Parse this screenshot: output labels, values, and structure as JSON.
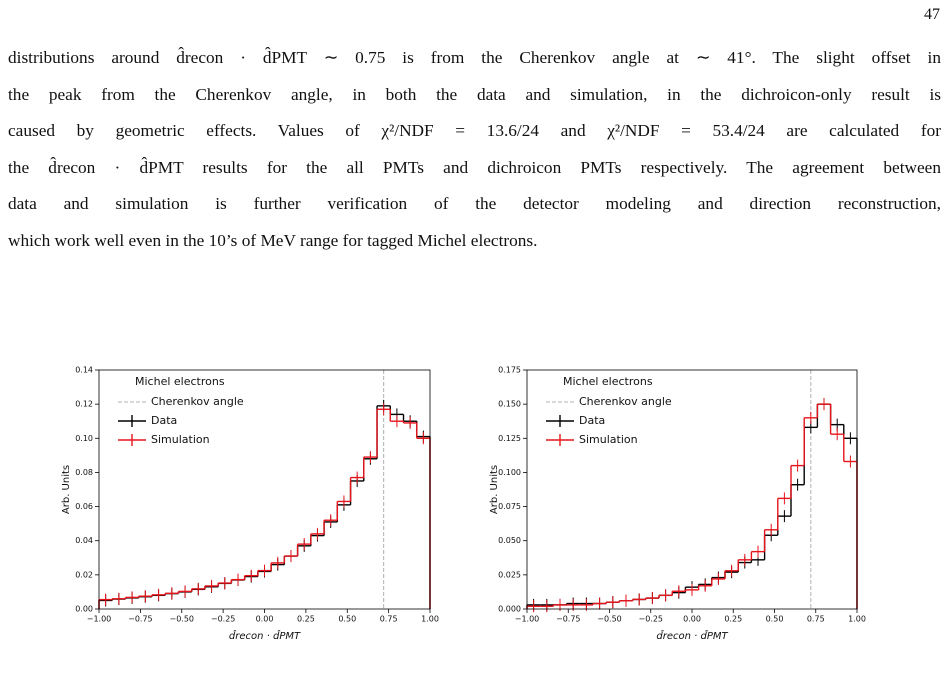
{
  "page_number": "47",
  "paragraph": [
    "distributions around d̂recon · d̂PMT ∼ 0.75 is from the Cherenkov angle at ∼ 41°. The slight offset in",
    "the peak from the Cherenkov angle, in both the data and simulation, in the dichroicon-only result is",
    "caused by geometric effects. Values of χ²/NDF = 13.6/24 and χ²/NDF = 53.4/24 are calculated for",
    "the d̂recon · d̂PMT results for the all PMTs and dichroicon PMTs respectively. The agreement between",
    "data and simulation is further verification of the detector modeling and direction reconstruction,",
    "which work well even in the 10’s of MeV range for tagged Michel electrons."
  ],
  "chart_data": [
    {
      "type": "histogram",
      "x_label": "d̂recon · d̂PMT",
      "y_label": "Arb. Units",
      "legend_title": "Michel electrons",
      "reference_line": {
        "name": "Cherenkov angle",
        "x": 0.72,
        "color": "#b0b0b0"
      },
      "bins": [
        -1,
        -0.92,
        -0.84,
        -0.76,
        -0.68,
        -0.6,
        -0.52,
        -0.44,
        -0.36,
        -0.28,
        -0.2,
        -0.12,
        -0.04,
        0.04,
        0.12,
        0.2,
        0.28,
        0.36,
        0.44,
        0.52,
        0.6,
        0.68,
        0.76,
        0.84,
        0.92,
        1
      ],
      "series": [
        {
          "name": "Data",
          "color": "#000000",
          "values": [
            0.005,
            0.0058,
            0.0065,
            0.0072,
            0.008,
            0.009,
            0.01,
            0.0115,
            0.013,
            0.015,
            0.017,
            0.019,
            0.022,
            0.026,
            0.031,
            0.037,
            0.043,
            0.051,
            0.061,
            0.075,
            0.088,
            0.119,
            0.114,
            0.11,
            0.101
          ]
        },
        {
          "name": "Simulation",
          "color": "#e8141c",
          "values": [
            0.0055,
            0.006,
            0.0068,
            0.0075,
            0.0083,
            0.0092,
            0.0103,
            0.0118,
            0.0135,
            0.0152,
            0.0172,
            0.0195,
            0.0225,
            0.027,
            0.031,
            0.038,
            0.044,
            0.052,
            0.063,
            0.077,
            0.089,
            0.117,
            0.11,
            0.109,
            0.1
          ]
        }
      ],
      "xlim": [
        -1,
        1
      ],
      "xticks": [
        {
          "value": -1,
          "label": "−1.00"
        },
        {
          "value": -0.75,
          "label": "−0.75"
        },
        {
          "value": -0.5,
          "label": "−0.50"
        },
        {
          "value": -0.25,
          "label": "−0.25"
        },
        {
          "value": 0,
          "label": "0.00"
        },
        0.25,
        {
          "value": 0.5,
          "label": "0.50"
        },
        0.75,
        {
          "value": 1,
          "label": "1.00"
        }
      ],
      "ylim": [
        0,
        0.14
      ],
      "yticks": [
        {
          "value": 0,
          "label": "0.00"
        },
        0.02,
        0.04,
        0.06,
        0.08,
        {
          "value": 0.1,
          "label": "0.10"
        },
        0.12,
        0.14
      ]
    },
    {
      "type": "histogram",
      "x_label": "d̂recon · d̂PMT",
      "y_label": "Arb. Units",
      "legend_title": "Michel electrons",
      "reference_line": {
        "name": "Cherenkov angle",
        "x": 0.72,
        "color": "#b0b0b0"
      },
      "bins": [
        -1,
        -0.92,
        -0.84,
        -0.76,
        -0.68,
        -0.6,
        -0.52,
        -0.44,
        -0.36,
        -0.28,
        -0.2,
        -0.12,
        -0.04,
        0.04,
        0.12,
        0.2,
        0.28,
        0.36,
        0.44,
        0.52,
        0.6,
        0.68,
        0.76,
        0.84,
        0.92,
        1
      ],
      "series": [
        {
          "name": "Data",
          "color": "#000000",
          "values": [
            0.003,
            0.003,
            0.003,
            0.004,
            0.004,
            0.004,
            0.005,
            0.006,
            0.007,
            0.008,
            0.01,
            0.012,
            0.016,
            0.018,
            0.023,
            0.027,
            0.034,
            0.036,
            0.054,
            0.068,
            0.091,
            0.133,
            0.15,
            0.135,
            0.125
          ]
        },
        {
          "name": "Simulation",
          "color": "#e8141c",
          "values": [
            0.002,
            0.002,
            0.003,
            0.003,
            0.003,
            0.004,
            0.005,
            0.006,
            0.007,
            0.008,
            0.01,
            0.013,
            0.014,
            0.017,
            0.022,
            0.028,
            0.036,
            0.042,
            0.058,
            0.081,
            0.105,
            0.14,
            0.15,
            0.128,
            0.108
          ]
        }
      ],
      "xlim": [
        -1,
        1
      ],
      "xticks": [
        {
          "value": -1,
          "label": "−1.00"
        },
        {
          "value": -0.75,
          "label": "−0.75"
        },
        {
          "value": -0.5,
          "label": "−0.50"
        },
        {
          "value": -0.25,
          "label": "−0.25"
        },
        {
          "value": 0,
          "label": "0.00"
        },
        0.25,
        {
          "value": 0.5,
          "label": "0.50"
        },
        0.75,
        {
          "value": 1,
          "label": "1.00"
        }
      ],
      "ylim": [
        0,
        0.175
      ],
      "yticks": [
        {
          "value": 0,
          "label": "0.000"
        },
        0.025,
        {
          "value": 0.05,
          "label": "0.050"
        },
        0.075,
        {
          "value": 0.1,
          "label": "0.100"
        },
        0.125,
        {
          "value": 0.15,
          "label": "0.150"
        },
        0.175
      ]
    }
  ]
}
